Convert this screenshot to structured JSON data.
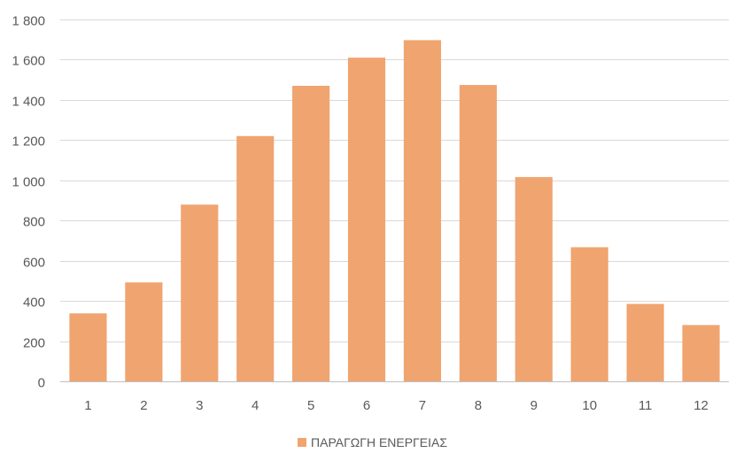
{
  "chart_data": {
    "type": "bar",
    "categories": [
      "1",
      "2",
      "3",
      "4",
      "5",
      "6",
      "7",
      "8",
      "9",
      "10",
      "11",
      "12"
    ],
    "series": [
      {
        "name": "ΠΑΡΑΓΩΓΗ ΕΝΕΡΓΕΙΑΣ",
        "values": [
          338,
          492,
          879,
          1220,
          1470,
          1610,
          1697,
          1474,
          1016,
          667,
          385,
          280
        ],
        "color": "#F0A46F"
      }
    ],
    "title": "",
    "xlabel": "",
    "ylabel": "",
    "ylim": [
      0,
      1800
    ],
    "yticks": [
      0,
      200,
      400,
      600,
      800,
      1000,
      1200,
      1400,
      1600,
      1800
    ],
    "ytick_labels": [
      "0",
      "200",
      "400",
      "600",
      "800",
      "1 000",
      "1 200",
      "1 400",
      "1 600",
      "1 800"
    ],
    "grid": true,
    "legend": "bottom-center",
    "colors": {
      "gridline": "#D9D9D9",
      "axis": "#BFBFBF",
      "text": "#595959"
    }
  }
}
